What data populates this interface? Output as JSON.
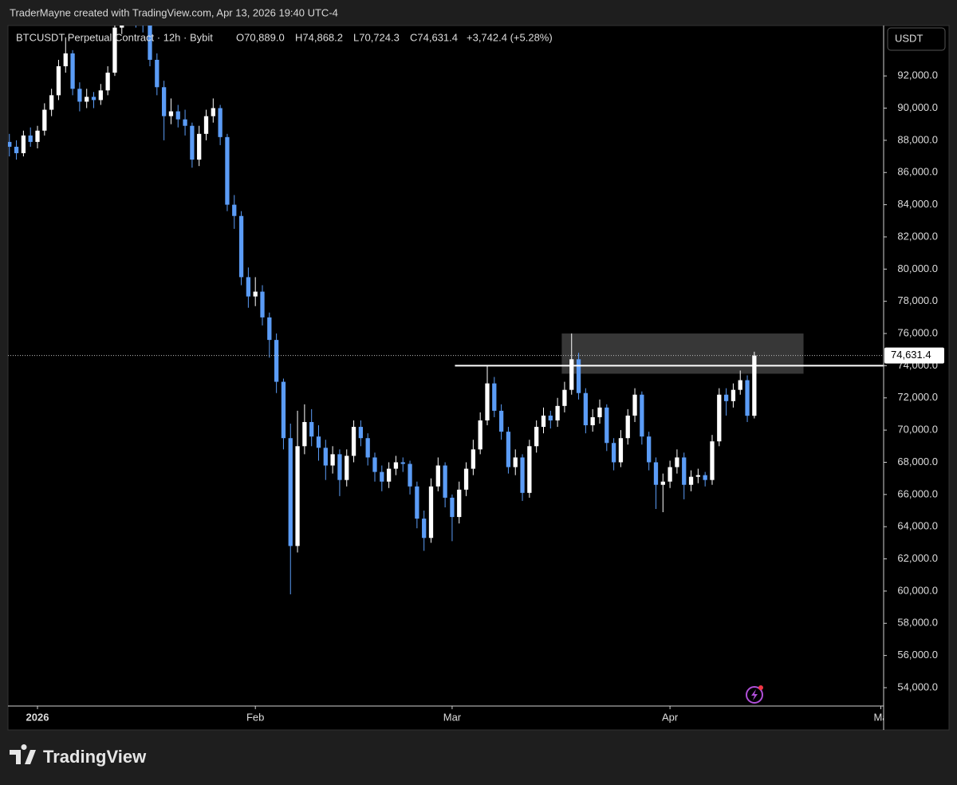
{
  "header": "TraderMayne created with TradingView.com, Apr 13, 2026 19:40 UTC-4",
  "footer": "TradingView",
  "chart_data": {
    "type": "candlestick",
    "symbol": "BTCUSDT Perpetual Contract · 12h · Bybit",
    "ohlc_labels": [
      "O70,889.0",
      "H74,868.2",
      "L70,724.3",
      "C74,631.4"
    ],
    "change_label": "+3,742.4 (+5.28%)",
    "currency": "USDT",
    "price_tag": "74,631.4",
    "up_color": "#ffffff",
    "down_color": "#5b9cf6",
    "ohlc": [
      [
        87900,
        88400,
        87000,
        87600
      ],
      [
        87600,
        88000,
        86800,
        87200
      ],
      [
        87200,
        88600,
        87000,
        88300
      ],
      [
        88300,
        88800,
        87600,
        87900
      ],
      [
        87900,
        88900,
        87500,
        88600
      ],
      [
        88600,
        90300,
        88300,
        89900
      ],
      [
        89900,
        91200,
        89500,
        90800
      ],
      [
        90800,
        93000,
        90500,
        92600
      ],
      [
        92600,
        94400,
        92200,
        93400
      ],
      [
        93400,
        93600,
        90800,
        91200
      ],
      [
        91200,
        91600,
        89800,
        90400
      ],
      [
        90400,
        91200,
        90000,
        90700
      ],
      [
        90700,
        91000,
        90000,
        90500
      ],
      [
        90500,
        91500,
        90200,
        91100
      ],
      [
        91100,
        92600,
        90800,
        92200
      ],
      [
        92200,
        95600,
        92000,
        95000
      ],
      [
        95000,
        97400,
        94600,
        96500
      ],
      [
        96500,
        97900,
        95900,
        96800
      ],
      [
        96800,
        97200,
        95000,
        95600
      ],
      [
        95600,
        96100,
        94700,
        95300
      ],
      [
        95300,
        95600,
        92600,
        93000
      ],
      [
        93000,
        93400,
        90800,
        91300
      ],
      [
        91300,
        91700,
        88000,
        89500
      ],
      [
        89500,
        90600,
        89000,
        89800
      ],
      [
        89800,
        90200,
        88800,
        89300
      ],
      [
        89300,
        89900,
        88300,
        88900
      ],
      [
        88900,
        89100,
        86300,
        86800
      ],
      [
        86800,
        88900,
        86400,
        88400
      ],
      [
        88400,
        89900,
        88000,
        89500
      ],
      [
        89500,
        90600,
        89100,
        90000
      ],
      [
        90000,
        90200,
        87700,
        88200
      ],
      [
        88200,
        88400,
        83600,
        84000
      ],
      [
        84000,
        84600,
        82500,
        83300
      ],
      [
        83300,
        83600,
        79000,
        79500
      ],
      [
        79500,
        80100,
        77600,
        78300
      ],
      [
        78300,
        79500,
        77700,
        78600
      ],
      [
        78600,
        79000,
        76500,
        77000
      ],
      [
        77000,
        77300,
        74500,
        75600
      ],
      [
        75600,
        76000,
        72300,
        73000
      ],
      [
        73000,
        73200,
        68800,
        69500
      ],
      [
        69500,
        70400,
        59800,
        62800
      ],
      [
        62800,
        71200,
        62400,
        69000
      ],
      [
        69000,
        71600,
        68500,
        70500
      ],
      [
        70500,
        71300,
        69000,
        69600
      ],
      [
        69600,
        70300,
        68100,
        68900
      ],
      [
        68900,
        69400,
        66900,
        67800
      ],
      [
        67800,
        69000,
        67300,
        68500
      ],
      [
        68500,
        68800,
        65900,
        66900
      ],
      [
        66900,
        68800,
        66500,
        68400
      ],
      [
        68400,
        70600,
        68000,
        70200
      ],
      [
        70200,
        70600,
        69000,
        69500
      ],
      [
        69500,
        69800,
        67800,
        68300
      ],
      [
        68300,
        68600,
        66800,
        67400
      ],
      [
        67400,
        67800,
        66200,
        66800
      ],
      [
        66800,
        68000,
        66400,
        67600
      ],
      [
        67600,
        68400,
        67200,
        68000
      ],
      [
        68000,
        68300,
        67400,
        67900
      ],
      [
        67900,
        68100,
        66000,
        66500
      ],
      [
        66500,
        66800,
        63900,
        64500
      ],
      [
        64500,
        65000,
        62500,
        63300
      ],
      [
        63300,
        67000,
        63000,
        66500
      ],
      [
        66500,
        68300,
        66200,
        67800
      ],
      [
        67800,
        68000,
        65200,
        65800
      ],
      [
        65800,
        66000,
        63100,
        64600
      ],
      [
        64600,
        66800,
        64200,
        66300
      ],
      [
        66300,
        68000,
        65900,
        67600
      ],
      [
        67600,
        69400,
        67200,
        68800
      ],
      [
        68800,
        71100,
        68500,
        70600
      ],
      [
        70600,
        74000,
        70300,
        72900
      ],
      [
        72900,
        73300,
        70800,
        71200
      ],
      [
        71200,
        71600,
        69400,
        69900
      ],
      [
        69900,
        70200,
        67300,
        67700
      ],
      [
        67700,
        68800,
        67200,
        68300
      ],
      [
        68300,
        68500,
        65600,
        66100
      ],
      [
        66100,
        69400,
        65800,
        69000
      ],
      [
        69000,
        70600,
        68600,
        70200
      ],
      [
        70200,
        71400,
        69800,
        70900
      ],
      [
        70900,
        71200,
        70100,
        70600
      ],
      [
        70600,
        72000,
        70200,
        71500
      ],
      [
        71500,
        73000,
        71100,
        72500
      ],
      [
        72500,
        76000,
        72200,
        74400
      ],
      [
        74400,
        74800,
        71900,
        72300
      ],
      [
        72300,
        72600,
        69800,
        70300
      ],
      [
        70300,
        71300,
        69900,
        70800
      ],
      [
        70800,
        71900,
        70400,
        71400
      ],
      [
        71400,
        71600,
        68700,
        69200
      ],
      [
        69200,
        69500,
        67500,
        68000
      ],
      [
        68000,
        70000,
        67700,
        69500
      ],
      [
        69500,
        71300,
        69100,
        70900
      ],
      [
        70900,
        72600,
        70500,
        72200
      ],
      [
        72200,
        72400,
        69100,
        69600
      ],
      [
        69600,
        69900,
        67500,
        68000
      ],
      [
        68000,
        68300,
        65100,
        66600
      ],
      [
        66600,
        67300,
        64900,
        66800
      ],
      [
        66800,
        68100,
        66400,
        67700
      ],
      [
        67700,
        68800,
        67300,
        68300
      ],
      [
        68300,
        68600,
        65700,
        66600
      ],
      [
        66600,
        67500,
        66200,
        67100
      ],
      [
        67100,
        67600,
        66700,
        67200
      ],
      [
        67200,
        67400,
        66500,
        66900
      ],
      [
        66900,
        69700,
        66600,
        69300
      ],
      [
        69300,
        72600,
        69000,
        72200
      ],
      [
        72200,
        72600,
        70900,
        71800
      ],
      [
        71800,
        72900,
        71400,
        72500
      ],
      [
        72500,
        73700,
        72200,
        73100
      ],
      [
        73100,
        73400,
        70500,
        70889
      ],
      [
        70889,
        74868.2,
        70724.3,
        74631.4
      ]
    ],
    "zone": {
      "ylim": [
        73500,
        76000
      ],
      "xlim": [
        78.6,
        113
      ]
    },
    "level": {
      "value": 74000,
      "from": 63.4
    },
    "xlim": [
      -0.2,
      124.4
    ],
    "ylim": [
      52860,
      95130
    ],
    "xticks": [
      {
        "value": 4,
        "label": "2026"
      },
      {
        "value": 35,
        "label": "Feb"
      },
      {
        "value": 63,
        "label": "Mar"
      },
      {
        "value": 94,
        "label": "Apr"
      },
      {
        "value": 124,
        "label": "Ma"
      }
    ],
    "yticks": [
      {
        "value": 54000,
        "label": "54,000.0"
      },
      {
        "value": 56000,
        "label": "56,000.0"
      },
      {
        "value": 58000,
        "label": "58,000.0"
      },
      {
        "value": 60000,
        "label": "60,000.0"
      },
      {
        "value": 62000,
        "label": "62,000.0"
      },
      {
        "value": 64000,
        "label": "64,000.0"
      },
      {
        "value": 66000,
        "label": "66,000.0"
      },
      {
        "value": 68000,
        "label": "68,000.0"
      },
      {
        "value": 70000,
        "label": "70,000.0"
      },
      {
        "value": 72000,
        "label": "72,000.0"
      },
      {
        "value": 74000,
        "label": "74,000.0"
      },
      {
        "value": 76000,
        "label": "76,000.0"
      },
      {
        "value": 78000,
        "label": "78,000.0"
      },
      {
        "value": 80000,
        "label": "80,000.0"
      },
      {
        "value": 82000,
        "label": "82,000.0"
      },
      {
        "value": 84000,
        "label": "84,000.0"
      },
      {
        "value": 86000,
        "label": "86,000.0"
      },
      {
        "value": 88000,
        "label": "88,000.0"
      },
      {
        "value": 90000,
        "label": "90,000.0"
      },
      {
        "value": 92000,
        "label": "92,000.0"
      }
    ],
    "grid": false
  }
}
